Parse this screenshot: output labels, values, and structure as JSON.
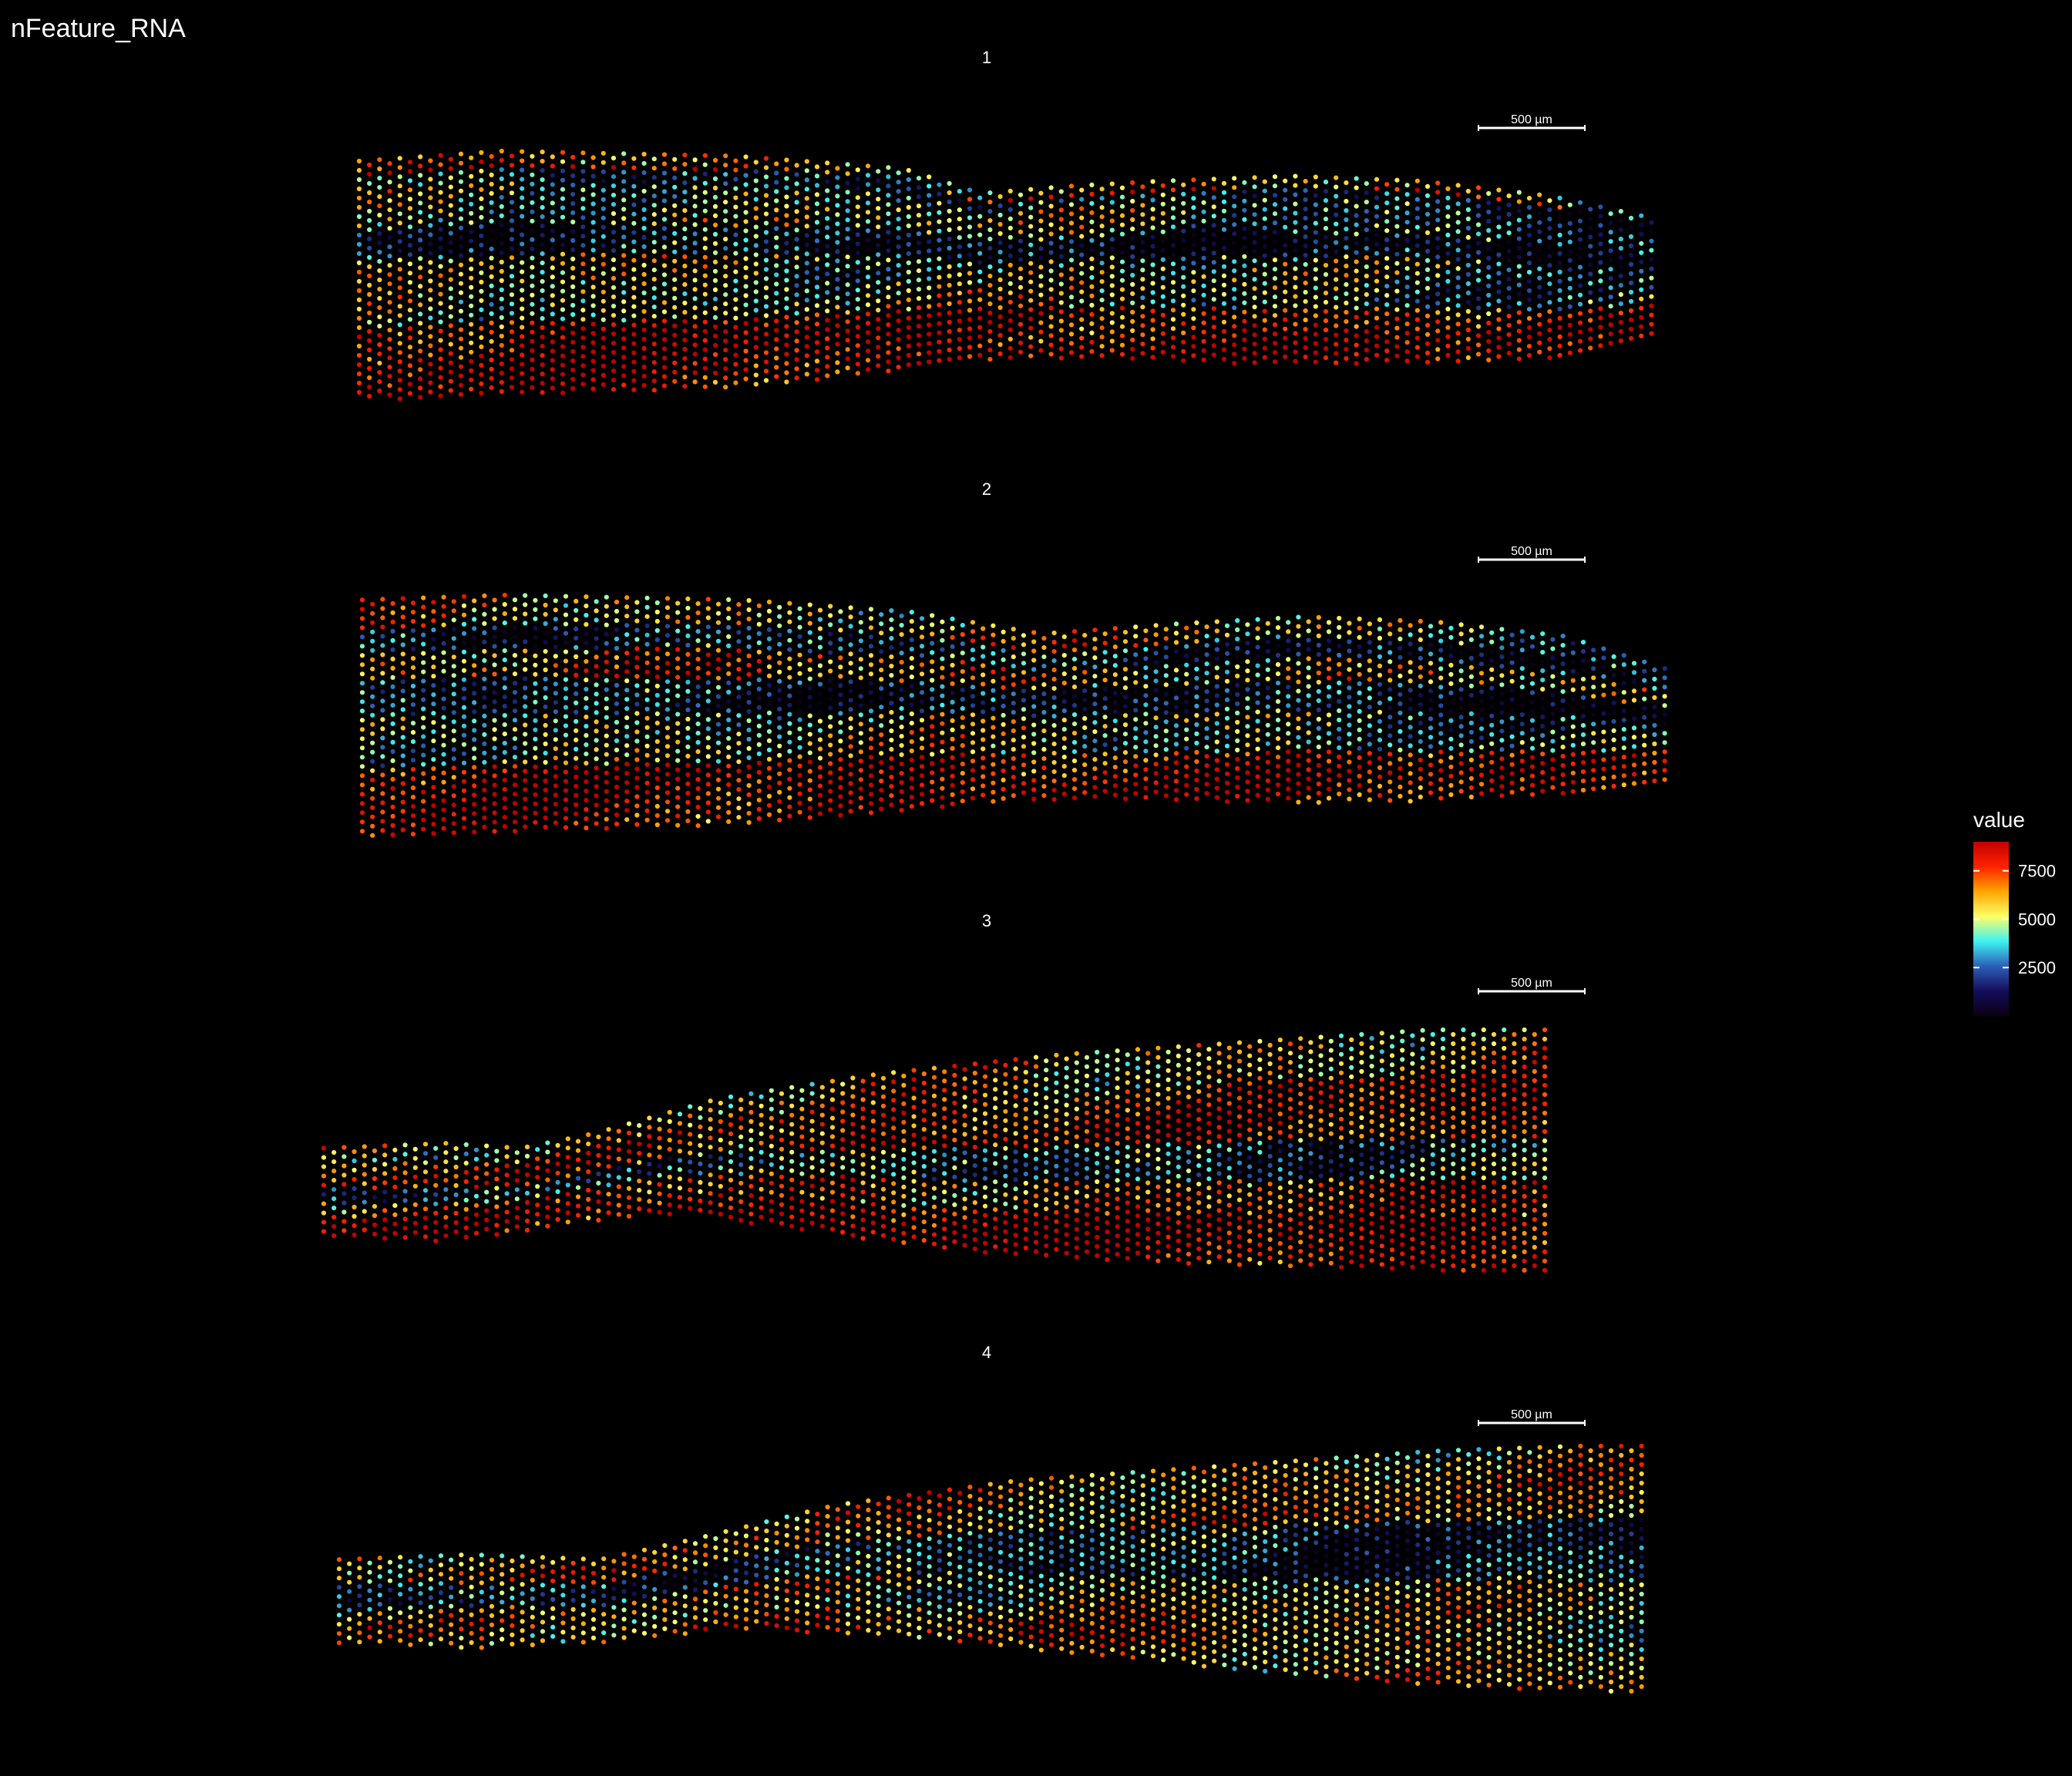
{
  "title": "nFeature_RNA",
  "chart_data": [
    {
      "type": "scatter",
      "title": "1",
      "scale_bar": "500 µm",
      "x": [],
      "y": [],
      "shape": {
        "top": [
          [
            0,
            0.04
          ],
          [
            0.11,
            0.0
          ],
          [
            0.29,
            0.02
          ],
          [
            0.42,
            0.07
          ],
          [
            0.48,
            0.17
          ],
          [
            0.55,
            0.14
          ],
          [
            0.62,
            0.12
          ],
          [
            0.72,
            0.1
          ],
          [
            0.82,
            0.12
          ],
          [
            0.92,
            0.18
          ],
          [
            1.0,
            0.27
          ]
        ],
        "bottom": [
          [
            0,
            1.0
          ],
          [
            0.11,
            0.98
          ],
          [
            0.29,
            0.95
          ],
          [
            0.42,
            0.88
          ],
          [
            0.48,
            0.84
          ],
          [
            0.55,
            0.83
          ],
          [
            0.62,
            0.84
          ],
          [
            0.72,
            0.86
          ],
          [
            0.82,
            0.85
          ],
          [
            0.92,
            0.83
          ],
          [
            1.0,
            0.76
          ]
        ],
        "bands": [
          {
            "from": 0.0,
            "to": 0.05,
            "value": 6000
          },
          {
            "from": 0.06,
            "to": 0.12,
            "value": 3200
          },
          {
            "from": 0.12,
            "to": 0.3,
            "value": 4800
          },
          {
            "from": 0.3,
            "to": 0.42,
            "value": 2200
          },
          {
            "from": 0.42,
            "to": 0.7,
            "value": 5200
          },
          {
            "from": 0.7,
            "to": 1.0,
            "value": 8400
          }
        ],
        "right_bias": -1800
      }
    },
    {
      "type": "scatter",
      "title": "2",
      "scale_bar": "500 µm",
      "x": [],
      "y": [],
      "shape": {
        "top": [
          [
            0,
            0.02
          ],
          [
            0.11,
            0.0
          ],
          [
            0.29,
            0.02
          ],
          [
            0.42,
            0.07
          ],
          [
            0.52,
            0.16
          ],
          [
            0.62,
            0.12
          ],
          [
            0.72,
            0.09
          ],
          [
            0.82,
            0.11
          ],
          [
            0.92,
            0.17
          ],
          [
            1.0,
            0.31
          ]
        ],
        "bottom": [
          [
            0,
            1.0
          ],
          [
            0.11,
            0.98
          ],
          [
            0.29,
            0.95
          ],
          [
            0.42,
            0.89
          ],
          [
            0.48,
            0.86
          ],
          [
            0.55,
            0.84
          ],
          [
            0.62,
            0.85
          ],
          [
            0.72,
            0.86
          ],
          [
            0.82,
            0.85
          ],
          [
            0.92,
            0.83
          ],
          [
            1.0,
            0.77
          ]
        ],
        "bands": [
          {
            "from": 0.0,
            "to": 0.12,
            "value": 5800
          },
          {
            "from": 0.12,
            "to": 0.22,
            "value": 3000
          },
          {
            "from": 0.22,
            "to": 0.35,
            "value": 6400
          },
          {
            "from": 0.35,
            "to": 0.5,
            "value": 2600
          },
          {
            "from": 0.5,
            "to": 0.72,
            "value": 5000
          },
          {
            "from": 0.72,
            "to": 1.0,
            "value": 8300
          }
        ],
        "right_bias": -1600
      }
    },
    {
      "type": "scatter",
      "title": "3",
      "scale_bar": "500 µm",
      "x": [],
      "y": [],
      "shape": {
        "top": [
          [
            0,
            0.48
          ],
          [
            0.1,
            0.46
          ],
          [
            0.16,
            0.48
          ],
          [
            0.22,
            0.42
          ],
          [
            0.32,
            0.28
          ],
          [
            0.45,
            0.18
          ],
          [
            0.6,
            0.1
          ],
          [
            0.75,
            0.05
          ],
          [
            0.9,
            0.0
          ],
          [
            1.0,
            0.0
          ]
        ],
        "bottom": [
          [
            0,
            0.84
          ],
          [
            0.1,
            0.86
          ],
          [
            0.16,
            0.82
          ],
          [
            0.27,
            0.74
          ],
          [
            0.4,
            0.82
          ],
          [
            0.52,
            0.9
          ],
          [
            0.65,
            0.94
          ],
          [
            0.8,
            0.96
          ],
          [
            0.92,
            0.98
          ],
          [
            1.0,
            0.98
          ]
        ],
        "bands": [
          {
            "from": 0.0,
            "to": 0.18,
            "value": 5800
          },
          {
            "from": 0.18,
            "to": 0.45,
            "value": 7200
          },
          {
            "from": 0.45,
            "to": 0.62,
            "value": 3600
          },
          {
            "from": 0.62,
            "to": 0.78,
            "value": 6800
          },
          {
            "from": 0.78,
            "to": 1.0,
            "value": 8500
          }
        ],
        "right_bias": 0
      }
    },
    {
      "type": "scatter",
      "title": "4",
      "scale_bar": "500 µm",
      "x": [],
      "y": [],
      "shape": {
        "top": [
          [
            0,
            0.46
          ],
          [
            0.1,
            0.44
          ],
          [
            0.2,
            0.46
          ],
          [
            0.27,
            0.38
          ],
          [
            0.38,
            0.24
          ],
          [
            0.52,
            0.14
          ],
          [
            0.68,
            0.08
          ],
          [
            0.84,
            0.02
          ],
          [
            0.95,
            0.0
          ],
          [
            1.0,
            0.0
          ]
        ],
        "bottom": [
          [
            0,
            0.8
          ],
          [
            0.1,
            0.82
          ],
          [
            0.2,
            0.8
          ],
          [
            0.3,
            0.74
          ],
          [
            0.45,
            0.78
          ],
          [
            0.6,
            0.86
          ],
          [
            0.75,
            0.94
          ],
          [
            0.88,
            0.98
          ],
          [
            1.0,
            1.0
          ]
        ],
        "bands": [
          {
            "from": 0.0,
            "to": 0.3,
            "value": 6200
          },
          {
            "from": 0.3,
            "to": 0.55,
            "value": 3000
          },
          {
            "from": 0.55,
            "to": 0.8,
            "value": 5600
          },
          {
            "from": 0.8,
            "to": 1.0,
            "value": 6400
          }
        ],
        "right_bias": -500
      }
    }
  ],
  "legend": {
    "title": "value",
    "ticks": [
      "7500",
      "5000",
      "2500"
    ],
    "tick_values": [
      7500,
      5000,
      2500
    ],
    "min": 0,
    "max": 9000,
    "placement": "right",
    "colors": [
      "#0b0014",
      "#130d5a",
      "#2c5fb8",
      "#3ff2f2",
      "#ffff66",
      "#ffa500",
      "#ff2200",
      "#c00000"
    ]
  }
}
